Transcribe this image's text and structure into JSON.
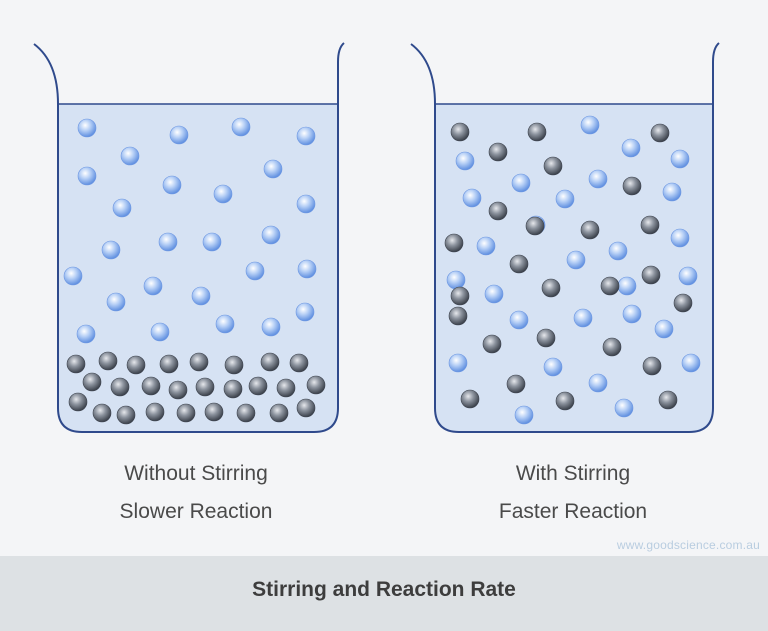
{
  "beakers": [
    {
      "id": "left",
      "caption_line1": "Without Stirring",
      "caption_line2": "Slower Reaction"
    },
    {
      "id": "right",
      "caption_line1": "With Stirring",
      "caption_line2": "Faster Reaction"
    }
  ],
  "watermark": "www.goodscience.com.au",
  "footer": {
    "title": "Stirring and Reaction Rate"
  },
  "colors": {
    "liquid": "#d6e2f3",
    "beaker_outline": "#2f4a8c",
    "blue_particle": "#7ea8ea",
    "grey_particle": "#5d6470",
    "footer_bg": "#dde1e4"
  },
  "particle_types": [
    "blue-particle",
    "grey-particle"
  ]
}
